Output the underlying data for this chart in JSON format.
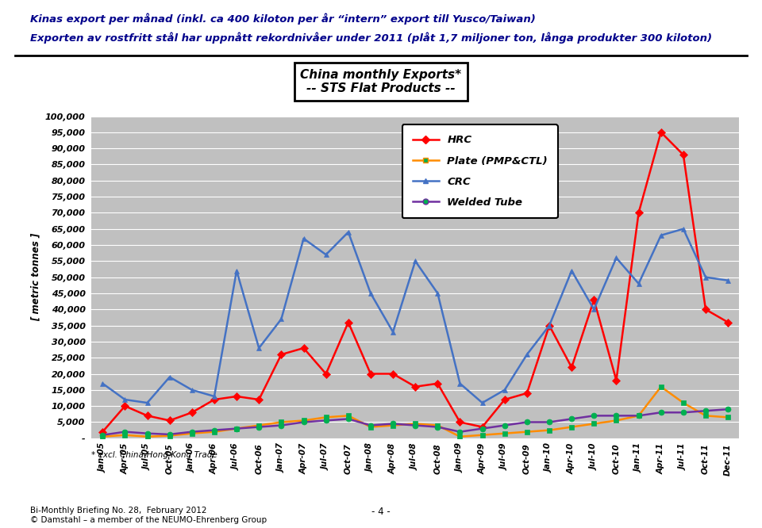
{
  "title_line1": "Kinas export per månad (inkl. ca 400 kiloton per år “intern” export till Yusco/Taiwan)",
  "title_line2": "Exporten av rostfritt stål har uppnått rekordnivåer under 2011 (plåt 1,7 miljoner ton, långa produkter 300 kiloton)",
  "chart_title_line1": "China monthly Exports*",
  "chart_title_line2": "-- STS Flat Products --",
  "ylabel": "[ metric tonnes ]",
  "footnote": "* excl. China-Hong Kong Trade",
  "footer_left": "Bi-Monthly Briefing No. 28,  February 2012\n© Damstahl – a member of the NEUMO-Ehrenberg Group",
  "footer_center": "- 4 -",
  "x_labels": [
    "Jan-05",
    "Apr-05",
    "Jul-05",
    "Oct-05",
    "Jan-06",
    "Apr-06",
    "Jul-06",
    "Oct-06",
    "Jan-07",
    "Apr-07",
    "Jul-07",
    "Oct-07",
    "Jan-08",
    "Apr-08",
    "Jul-08",
    "Oct-08",
    "Jan-09",
    "Apr-09",
    "Jul-09",
    "Oct-09",
    "Jan-10",
    "Apr-10",
    "Jul-10",
    "Oct-10",
    "Jan-11",
    "Apr-11",
    "Jul-11",
    "Oct-11",
    "Dec-11"
  ],
  "HRC": [
    2000,
    10000,
    7000,
    5500,
    8000,
    12000,
    13000,
    12000,
    26000,
    28000,
    20000,
    36000,
    20000,
    20000,
    16000,
    17000,
    5000,
    3500,
    12000,
    14000,
    35000,
    22000,
    43000,
    18000,
    70000,
    95000,
    88000,
    40000,
    36000
  ],
  "Plate": [
    500,
    1000,
    500,
    800,
    1500,
    2000,
    3000,
    4000,
    5000,
    5500,
    6500,
    7000,
    3500,
    4000,
    4500,
    4000,
    500,
    1000,
    1500,
    2000,
    2500,
    3500,
    4500,
    5500,
    7000,
    16000,
    11000,
    7000,
    6500
  ],
  "CRC": [
    17000,
    12000,
    11000,
    19000,
    15000,
    13000,
    52000,
    28000,
    37000,
    62000,
    57000,
    64000,
    45000,
    33000,
    55000,
    45000,
    17000,
    11000,
    15000,
    26000,
    35000,
    52000,
    40000,
    56000,
    48000,
    63000,
    65000,
    50000,
    49000
  ],
  "WeldedTube": [
    1000,
    2000,
    1500,
    1200,
    2000,
    2500,
    3000,
    3500,
    4000,
    5000,
    5500,
    6000,
    4000,
    4500,
    4000,
    3500,
    2000,
    3000,
    4000,
    5000,
    5000,
    6000,
    7000,
    7000,
    7000,
    8000,
    8000,
    8500,
    9000
  ],
  "HRC_color": "#FF0000",
  "Plate_line_color": "#FF8C00",
  "Plate_marker_color": "#00B050",
  "CRC_color": "#4472C4",
  "WeldedTube_line_color": "#7030A0",
  "WeldedTube_marker_color": "#00B050",
  "plot_bg_color": "#C0C0C0",
  "ylim": [
    0,
    100000
  ],
  "yticks": [
    0,
    5000,
    10000,
    15000,
    20000,
    25000,
    30000,
    35000,
    40000,
    45000,
    50000,
    55000,
    60000,
    65000,
    70000,
    75000,
    80000,
    85000,
    90000,
    95000,
    100000
  ]
}
